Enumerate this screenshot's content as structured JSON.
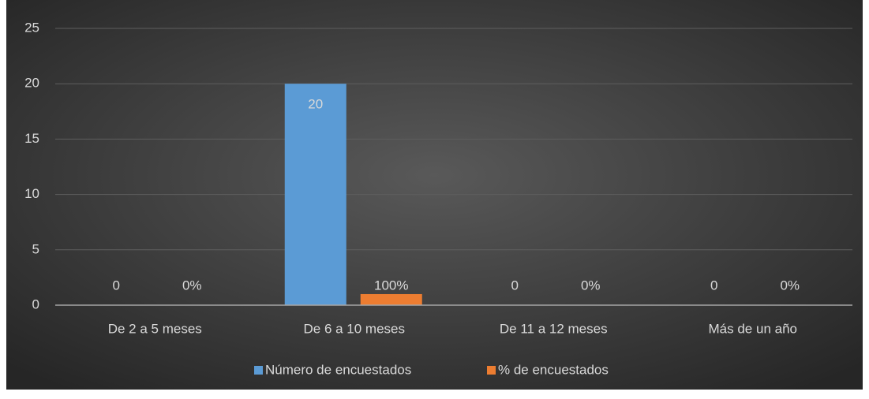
{
  "chart_data": {
    "type": "bar",
    "categories": [
      "De 2 a 5 meses",
      "De 6 a 10 meses",
      "De 11 a 12 meses",
      "Más de un año"
    ],
    "series": [
      {
        "name": "Número de encuestados",
        "color": "#5b9bd5",
        "values": [
          0,
          20,
          0,
          0
        ]
      },
      {
        "name": "% de encuestados",
        "color": "#ed7d31",
        "values": [
          0,
          1,
          0,
          0
        ],
        "value_labels": [
          "0%",
          "100%",
          "0%",
          "0%"
        ]
      }
    ],
    "ylim": [
      0,
      25
    ],
    "yticks": [
      0,
      5,
      10,
      15,
      20,
      25
    ],
    "grid": true,
    "legend": "bottom"
  }
}
